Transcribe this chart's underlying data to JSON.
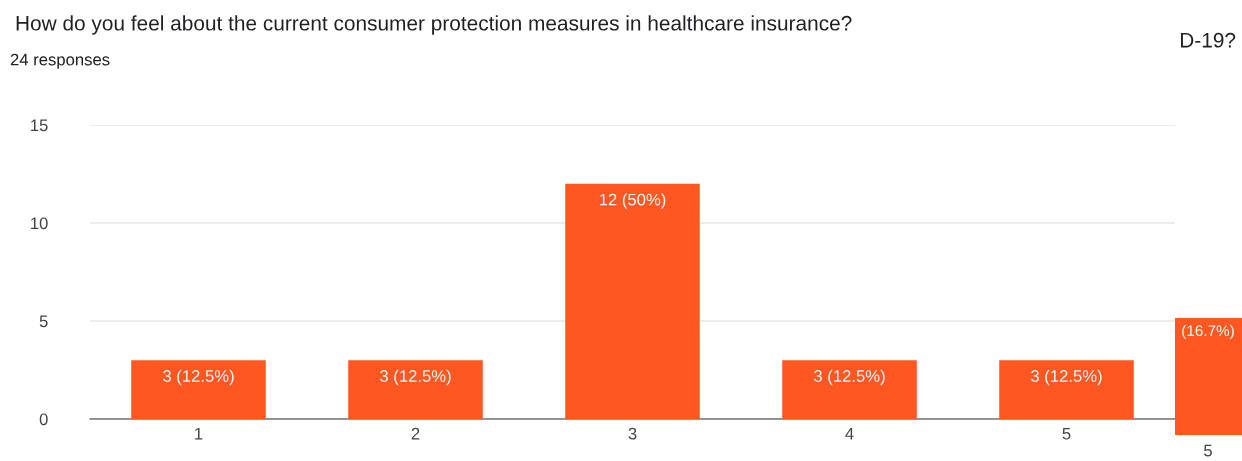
{
  "chart_data": {
    "type": "bar",
    "title": "How do you feel about the current consumer protection measures in healthcare insurance?",
    "subtitle": "24 responses",
    "categories": [
      "1",
      "2",
      "3",
      "4",
      "5"
    ],
    "values": [
      3,
      3,
      12,
      3,
      3
    ],
    "value_labels": [
      "3 (12.5%)",
      "3 (12.5%)",
      "12 (50%)",
      "3 (12.5%)",
      "3 (12.5%)"
    ],
    "color": "#ff5722",
    "ylim": [
      0,
      15
    ],
    "yticks": [
      0,
      5,
      10,
      15
    ],
    "grid": "y",
    "legend": false,
    "annotations": [
      "D-19?",
      "(16.7%)",
      "5"
    ]
  }
}
